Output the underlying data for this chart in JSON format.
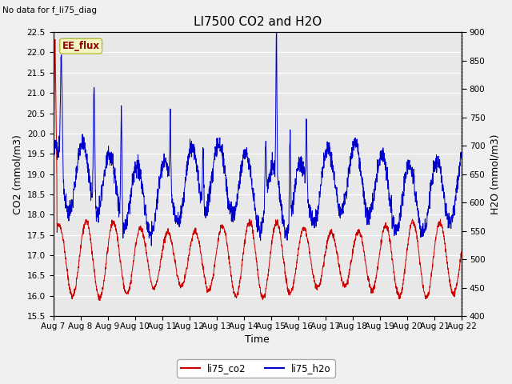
{
  "title": "LI7500 CO2 and H2O",
  "no_data_text": "No data for f_li75_diag",
  "ee_flux_label": "EE_flux",
  "xlabel": "Time",
  "ylabel_left": "CO2 (mmol/m3)",
  "ylabel_right": "H2O (mmol/m3)",
  "ylim_left": [
    15.5,
    22.5
  ],
  "ylim_right": [
    400,
    900
  ],
  "co2_color": "#cc0000",
  "h2o_color": "#0000cc",
  "fig_bg_color": "#f0f0f0",
  "plot_bg_color": "#e8e8e8",
  "legend_co2": "li75_co2",
  "legend_h2o": "li75_h2o",
  "x_tick_labels": [
    "Aug 7",
    "Aug 8",
    "Aug 9",
    "Aug 10",
    "Aug 11",
    "Aug 12",
    "Aug 13",
    "Aug 14",
    "Aug 15",
    "Aug 16",
    "Aug 17",
    "Aug 18",
    "Aug 19",
    "Aug 20",
    "Aug 21",
    "Aug 22"
  ],
  "x_tick_positions": [
    0,
    1,
    2,
    3,
    4,
    5,
    6,
    7,
    8,
    9,
    10,
    11,
    12,
    13,
    14,
    15
  ],
  "n_days": 15,
  "title_fontsize": 11,
  "axis_label_fontsize": 9,
  "tick_fontsize": 7.5
}
